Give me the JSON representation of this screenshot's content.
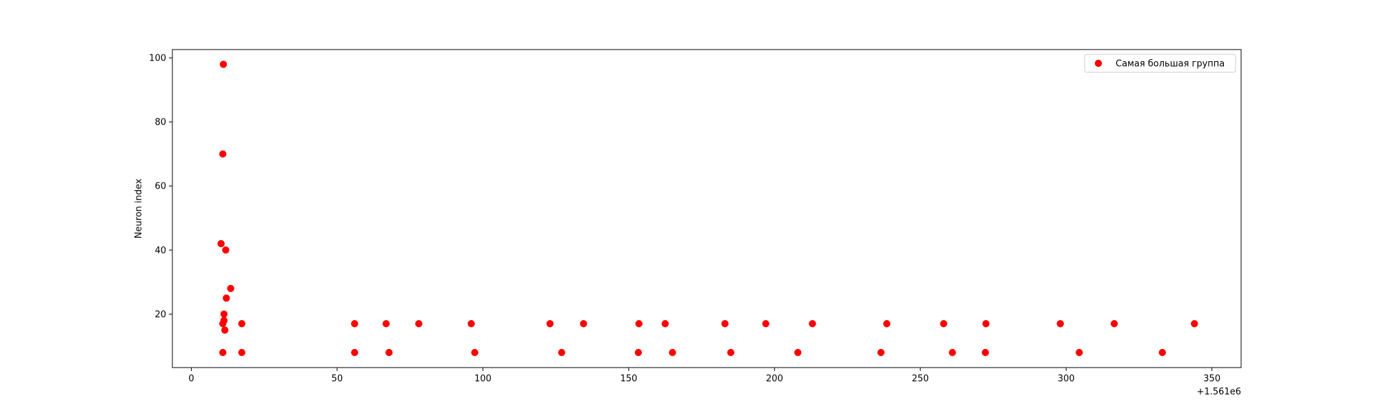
{
  "chart_data": {
    "type": "scatter",
    "title": "",
    "xlabel": "",
    "ylabel": "Neuron index",
    "x_offset_label": "+1.561e6",
    "xlim": [
      -6.5,
      360
    ],
    "ylim": [
      3.3,
      102.6
    ],
    "xticks": [
      0,
      50,
      100,
      150,
      200,
      250,
      300,
      350
    ],
    "yticks": [
      20,
      40,
      60,
      80,
      100
    ],
    "grid": false,
    "legend_position": "top-right",
    "series": [
      {
        "name": "Самая большая группа",
        "color": "#ff0000",
        "points": [
          [
            10.2,
            42
          ],
          [
            10.8,
            8
          ],
          [
            10.8,
            70
          ],
          [
            10.8,
            17
          ],
          [
            11.0,
            98
          ],
          [
            11.2,
            20
          ],
          [
            11.2,
            18
          ],
          [
            11.5,
            15
          ],
          [
            11.8,
            40
          ],
          [
            12.0,
            25
          ],
          [
            13.5,
            28
          ],
          [
            17.3,
            17
          ],
          [
            17.3,
            8
          ],
          [
            56.0,
            17
          ],
          [
            56.0,
            8
          ],
          [
            66.8,
            17
          ],
          [
            67.8,
            8
          ],
          [
            78.0,
            17
          ],
          [
            96.0,
            17
          ],
          [
            97.2,
            8
          ],
          [
            123.0,
            17
          ],
          [
            127.0,
            8
          ],
          [
            134.5,
            17
          ],
          [
            153.5,
            17
          ],
          [
            153.3,
            8
          ],
          [
            162.5,
            17
          ],
          [
            165.0,
            8
          ],
          [
            183.0,
            17
          ],
          [
            185.0,
            8
          ],
          [
            197.0,
            17
          ],
          [
            208.0,
            8
          ],
          [
            213.0,
            17
          ],
          [
            236.5,
            8
          ],
          [
            238.5,
            17
          ],
          [
            258.0,
            17
          ],
          [
            261.0,
            8
          ],
          [
            272.5,
            17
          ],
          [
            272.3,
            8
          ],
          [
            298.0,
            17
          ],
          [
            304.5,
            8
          ],
          [
            316.5,
            17
          ],
          [
            333.0,
            8
          ],
          [
            344.0,
            17
          ]
        ]
      }
    ]
  }
}
